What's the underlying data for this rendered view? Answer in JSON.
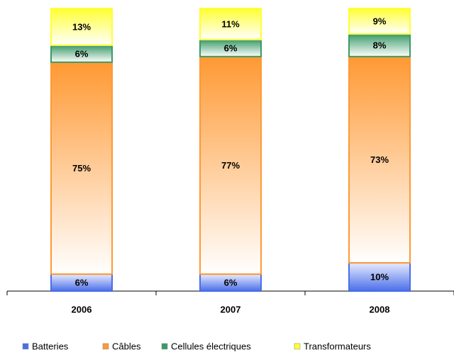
{
  "chart_data": {
    "type": "bar",
    "stacked": true,
    "categories": [
      "2006",
      "2007",
      "2008"
    ],
    "series": [
      {
        "name": "Batteries",
        "color": "#4a6ee8",
        "values": [
          6,
          6,
          10
        ],
        "value_labels": [
          "6%",
          "6%",
          "10%"
        ]
      },
      {
        "name": "Câbles",
        "color": "#ff9933",
        "values": [
          75,
          77,
          73
        ],
        "value_labels": [
          "75%",
          "77%",
          "73%"
        ]
      },
      {
        "name": "Cellules électriques",
        "color": "#3a9a68",
        "values": [
          6,
          6,
          8
        ],
        "value_labels": [
          "6%",
          "6%",
          "8%"
        ]
      },
      {
        "name": "Transformateurs",
        "color": "#ffff33",
        "values": [
          13,
          11,
          9
        ],
        "value_labels": [
          "13%",
          "11%",
          "9%"
        ]
      }
    ],
    "legend": "bottom"
  }
}
